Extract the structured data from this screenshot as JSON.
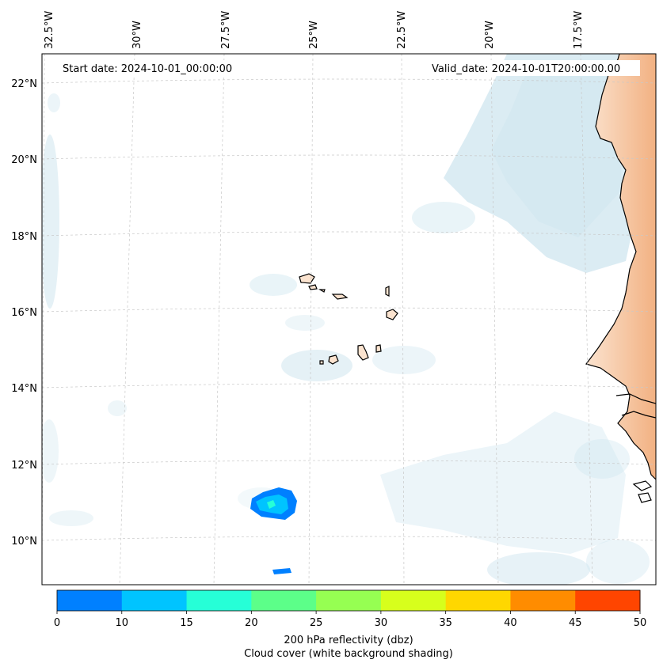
{
  "map": {
    "start_label": "Start date: 2024-10-01_00:00:00",
    "valid_label": "Valid_date: 2024-10-01T20:00:00.00",
    "lon_labels": [
      "32.5°W",
      "30°W",
      "27.5°W",
      "25°W",
      "22.5°W",
      "20°W",
      "17.5°W"
    ],
    "lat_labels": [
      "22°N",
      "20°N",
      "18°N",
      "16°N",
      "14°N",
      "12°N",
      "10°N"
    ],
    "cloud_color": "#cfe6ef",
    "land_color": "#f4b98c",
    "reflectivity_core_colors": [
      "#0080ff",
      "#00c4ff",
      "#26ffd7"
    ]
  },
  "colorbar": {
    "ticks": [
      "0",
      "10",
      "15",
      "20",
      "25",
      "30",
      "35",
      "40",
      "45",
      "50"
    ],
    "colors": [
      "#0080ff",
      "#00c4ff",
      "#26ffd7",
      "#5cff89",
      "#96ff52",
      "#d7ff1c",
      "#ffd700",
      "#ff8c00",
      "#ff4500"
    ],
    "label_line1": "200 hPa reflectivity (dbz)",
    "label_line2": "Cloud cover (white background shading)"
  }
}
